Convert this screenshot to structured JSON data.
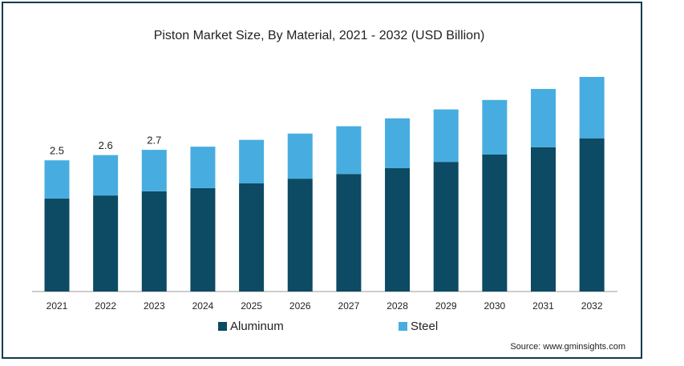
{
  "chart_data": {
    "type": "stacked-bar",
    "title": "Piston Market Size, By Material, 2021 - 2032 (USD Billion)",
    "categories": [
      "2021",
      "2022",
      "2023",
      "2024",
      "2025",
      "2026",
      "2027",
      "2028",
      "2029",
      "2030",
      "2031",
      "2032"
    ],
    "series": [
      {
        "name": "Aluminum",
        "color": "#0d4a63",
        "values": [
          1.77,
          1.83,
          1.91,
          1.97,
          2.06,
          2.15,
          2.24,
          2.35,
          2.47,
          2.61,
          2.75,
          2.92
        ]
      },
      {
        "name": "Steel",
        "color": "#47ade0",
        "values": [
          0.73,
          0.77,
          0.79,
          0.79,
          0.83,
          0.86,
          0.91,
          0.95,
          1.0,
          1.04,
          1.11,
          1.17
        ]
      }
    ],
    "totals": [
      2.5,
      2.6,
      2.7,
      null,
      null,
      null,
      null,
      null,
      null,
      null,
      null,
      null
    ],
    "source": "Source: www.gminsights.com"
  }
}
